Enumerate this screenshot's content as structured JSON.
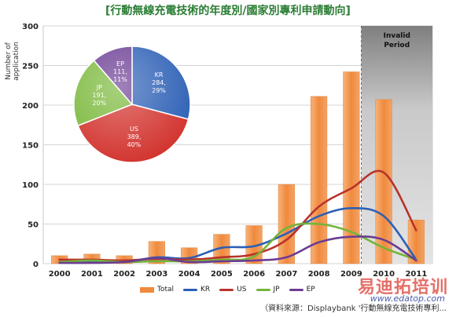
{
  "title": "[行動無線充電技術的年度別/國家別專利申請動向]",
  "source": "（資料來源：Displaybank '行動無線充電技術專利...",
  "watermark": "易迪拓培训",
  "watermark_sub": "www.edatop.com",
  "chart_data": [
    {
      "type": "bar",
      "title": "",
      "xlabel": "",
      "ylabel": "Number of application",
      "ylim": [
        0,
        300
      ],
      "yticks": [
        0,
        50,
        100,
        150,
        200,
        250,
        300
      ],
      "categories": [
        "2000",
        "2001",
        "2002",
        "2003",
        "2004",
        "2005",
        "2006",
        "2007",
        "2008",
        "2009",
        "2010",
        "2011"
      ],
      "series": [
        {
          "name": "Total",
          "type": "bar",
          "color": "#f08a3c",
          "values": [
            10,
            12,
            10,
            28,
            20,
            37,
            48,
            100,
            211,
            242,
            207,
            55
          ]
        },
        {
          "name": "KR",
          "type": "line",
          "color": "#2c5fb5",
          "values": [
            2,
            3,
            2,
            8,
            7,
            20,
            22,
            38,
            60,
            70,
            60,
            5
          ]
        },
        {
          "name": "US",
          "type": "line",
          "color": "#b8332a",
          "values": [
            5,
            5,
            4,
            6,
            5,
            8,
            12,
            30,
            72,
            95,
            115,
            42
          ]
        },
        {
          "name": "JP",
          "type": "line",
          "color": "#74b43a",
          "values": [
            2,
            4,
            2,
            3,
            3,
            5,
            9,
            45,
            50,
            40,
            20,
            5
          ]
        },
        {
          "name": "EP",
          "type": "line",
          "color": "#6b3d93",
          "values": [
            1,
            1,
            2,
            7,
            2,
            3,
            4,
            8,
            27,
            34,
            30,
            4
          ]
        }
      ],
      "annotation": "Invalid Period",
      "grid": true,
      "legend": "bottom"
    },
    {
      "type": "pie",
      "slices": [
        {
          "label": "KR",
          "value": 284,
          "percent": "29%",
          "color": "#2c5fb5"
        },
        {
          "label": "US",
          "value": 389,
          "percent": "40%",
          "color": "#d2322d"
        },
        {
          "label": "JP",
          "value": 191,
          "percent": "20%",
          "color": "#7ab83a"
        },
        {
          "label": "EP",
          "value": 111,
          "percent": "11%",
          "color": "#6b3d93"
        }
      ]
    }
  ]
}
